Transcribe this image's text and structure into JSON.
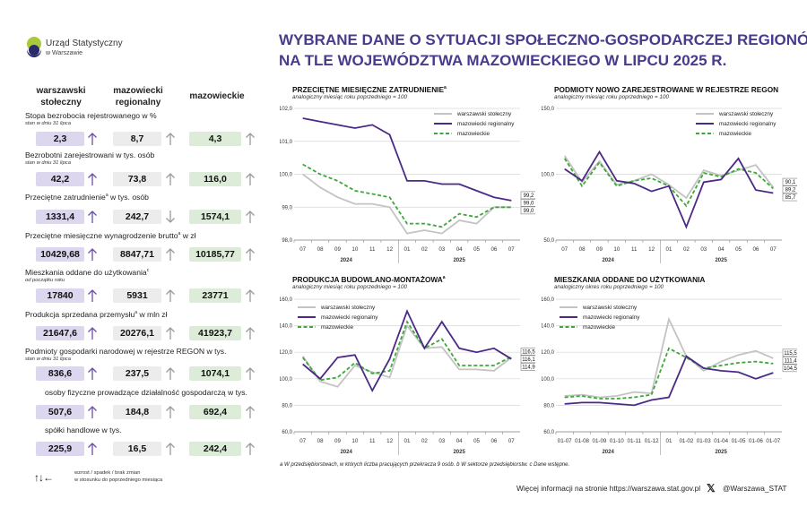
{
  "logo": {
    "line1": "Urząd Statystyczny",
    "line2": "w Warszawie"
  },
  "title": {
    "line1": "WYBRANE DANE O SYTUACJI SPOŁECZNO-GOSPODARCZEJ REGIONÓW",
    "line2": "NA TLE WOJEWÓDZTWA MAZOWIECKIEGO W LIPCU 2025 R."
  },
  "columns": {
    "c1a": "warszawski",
    "c1b": "stołeczny",
    "c2a": "mazowiecki",
    "c2b": "regionalny",
    "c3": "mazowieckie"
  },
  "indicators": [
    {
      "label": "Stopa bezrobocia rejestrowanego w %",
      "sub": "stan w dniu 31 lipca",
      "v1": "2,3",
      "v2": "8,7",
      "v3": "4,3",
      "a1": "up",
      "a2": "up",
      "a3": "up"
    },
    {
      "label": "Bezrobotni zarejestrowani w tys. osób",
      "sub": "stan w dniu 31 lipca",
      "v1": "42,2",
      "v2": "73,8",
      "v3": "116,0",
      "a1": "up",
      "a2": "up",
      "a3": "up"
    },
    {
      "label": "Przeciętne zatrudnienie",
      "sup": "a",
      "label2": " w tys. osób",
      "sub": "",
      "v1": "1331,4",
      "v2": "242,7",
      "v3": "1574,1",
      "a1": "up",
      "a2": "down",
      "a3": "up"
    },
    {
      "label": "Przeciętne miesięczne wynagrodzenie brutto",
      "sup": "a",
      "label2": " w zł",
      "sub": "",
      "v1": "10429,68",
      "v2": "8847,71",
      "v3": "10185,77",
      "a1": "up",
      "a2": "up",
      "a3": "up"
    },
    {
      "label": "Mieszkania oddane do użytkowania",
      "sup": "c",
      "label2": "",
      "sub": "od początku roku",
      "v1": "17840",
      "v2": "5931",
      "v3": "23771",
      "a1": "up",
      "a2": "up",
      "a3": "up"
    },
    {
      "label": "Produkcja sprzedana przemysłu",
      "sup": "a",
      "label2": " w mln zł",
      "sub": "",
      "v1": "21647,6",
      "v2": "20276,1",
      "v3": "41923,7",
      "a1": "up",
      "a2": "up",
      "a3": "up"
    },
    {
      "label": "Podmioty gospodarki narodowej w rejestrze REGON w tys.",
      "sub": "stan w dniu 31 lipca",
      "v1": "836,6",
      "v2": "237,5",
      "v3": "1074,1",
      "a1": "up",
      "a2": "up",
      "a3": "up"
    },
    {
      "label": "osoby fizyczne prowadzące działalność gospodarczą w tys.",
      "sub": "",
      "v1": "507,6",
      "v2": "184,8",
      "v3": "692,4",
      "a1": "up",
      "a2": "up",
      "a3": "up"
    },
    {
      "label": "spółki handlowe w tys.",
      "sub": "",
      "v1": "225,9",
      "v2": "16,5",
      "v3": "242,4",
      "a1": "up",
      "a2": "up",
      "a3": "up"
    }
  ],
  "arrow_legend": {
    "arrows": "↑↓←",
    "line1": "wzrost / spadek / brak zmian",
    "line2": "w stosunku do poprzedniego miesiąca"
  },
  "colors": {
    "ws": "#c3c3c3",
    "mr": "#4b2a86",
    "maz": "#3aa935",
    "title": "#4a3a8c"
  },
  "chart_data": [
    {
      "type": "line",
      "title": "PRZECIĘTNE MIESIĘCZNE ZATRUDNIENIE",
      "title_sup": "a",
      "subtitle": "analogiczny miesiąc roku poprzedniego = 100",
      "x": [
        "07",
        "08",
        "09",
        "10",
        "11",
        "12",
        "01",
        "02",
        "03",
        "04",
        "05",
        "06",
        "07"
      ],
      "years": [
        "2024",
        "2025"
      ],
      "ylim": [
        98.0,
        102.0
      ],
      "yticks": [
        "98,0",
        "99,0",
        "100,0",
        "101,0",
        "102,0"
      ],
      "series": [
        {
          "name": "warszawski stołeczny",
          "values": [
            100.0,
            99.6,
            99.3,
            99.1,
            99.1,
            99.0,
            98.2,
            98.3,
            98.2,
            98.6,
            98.5,
            99.0,
            99.0
          ]
        },
        {
          "name": "mazowiecki regionalny",
          "values": [
            101.7,
            101.6,
            101.5,
            101.4,
            101.5,
            101.2,
            99.8,
            99.8,
            99.7,
            99.7,
            99.5,
            99.3,
            99.2
          ]
        },
        {
          "name": "mazowieckie",
          "values": [
            100.3,
            100.0,
            99.8,
            99.5,
            99.4,
            99.3,
            98.5,
            98.5,
            98.4,
            98.8,
            98.7,
            99.0,
            99.0
          ]
        }
      ],
      "end_labels": [
        "99,2",
        "99,0",
        "99,0"
      ]
    },
    {
      "type": "line",
      "title": "PODMIOTY NOWO ZAREJESTROWANE W REJESTRZE REGON",
      "subtitle": "analogiczny miesiąc roku poprzedniego = 100",
      "x": [
        "07",
        "08",
        "09",
        "10",
        "11",
        "12",
        "01",
        "02",
        "03",
        "04",
        "05",
        "06",
        "07"
      ],
      "years": [
        "2024",
        "2025"
      ],
      "ylim": [
        50.0,
        150.0
      ],
      "yticks": [
        "50,0",
        "100,0",
        "150,0"
      ],
      "series": [
        {
          "name": "warszawski stołeczny",
          "values": [
            114,
            94,
            110,
            92,
            95,
            100,
            92,
            82,
            103,
            99,
            103,
            107,
            90.1
          ]
        },
        {
          "name": "mazowiecki regionalny",
          "values": [
            104,
            95,
            117,
            95,
            93,
            87,
            91,
            60,
            94,
            96,
            112,
            88,
            85.7
          ]
        },
        {
          "name": "mazowieckie",
          "values": [
            112,
            91,
            109,
            91,
            95,
            97,
            91,
            76,
            101,
            98,
            104,
            101,
            89.2
          ]
        }
      ],
      "end_labels": [
        "90,1",
        "89,2",
        "85,7"
      ]
    },
    {
      "type": "line",
      "title": "PRODUKCJA BUDOWLANO-MONTAŻOWA",
      "title_sup": "a",
      "subtitle": "analogiczny miesiąc roku poprzedniego = 100",
      "x": [
        "07",
        "08",
        "09",
        "10",
        "11",
        "12",
        "01",
        "02",
        "03",
        "04",
        "05",
        "06",
        "07"
      ],
      "years": [
        "2024",
        "2025"
      ],
      "ylim": [
        60.0,
        160.0
      ],
      "yticks": [
        "60,0",
        "80,0",
        "100,0",
        "120,0",
        "140,0",
        "160,0"
      ],
      "series": [
        {
          "name": "warszawski stołeczny",
          "values": [
            117,
            98,
            94,
            110,
            105,
            101,
            140,
            123,
            124,
            107,
            107,
            106,
            116.1
          ]
        },
        {
          "name": "mazowiecki regionalny",
          "values": [
            111,
            100,
            116,
            118,
            91,
            115,
            151,
            123,
            143,
            123,
            120,
            123,
            114.9
          ]
        },
        {
          "name": "mazowieckie",
          "values": [
            116,
            99,
            101,
            112,
            104,
            106,
            143,
            123,
            130,
            110,
            110,
            110,
            116.5
          ]
        }
      ],
      "end_labels": [
        "116,5",
        "116,1",
        "114,9"
      ]
    },
    {
      "type": "line",
      "title": "MIESZKANIA ODDANE DO UŻYTKOWANIA",
      "subtitle": "analogiczny okres roku poprzedniego = 100",
      "x": [
        "01-07",
        "01-08",
        "01-09",
        "01-10",
        "01-11",
        "01-12",
        "01",
        "01-02",
        "01-03",
        "01-04",
        "01-05",
        "01-06",
        "01-07"
      ],
      "years": [
        "2024",
        "2025"
      ],
      "ylim": [
        60.0,
        160.0
      ],
      "yticks": [
        "60,0",
        "80,0",
        "100,0",
        "120,0",
        "140,0",
        "160,0"
      ],
      "series": [
        {
          "name": "warszawski stołeczny",
          "values": [
            87,
            88,
            86,
            87,
            90,
            89,
            145,
            117,
            106,
            113,
            118,
            121,
            115.5
          ]
        },
        {
          "name": "mazowiecki regionalny",
          "values": [
            81,
            82,
            82,
            81,
            80,
            84,
            86,
            117,
            108,
            106,
            105,
            100,
            104.5
          ]
        },
        {
          "name": "mazowieckie",
          "values": [
            86,
            87,
            85,
            85,
            86,
            88,
            123,
            116,
            108,
            110,
            112,
            113,
            111.4
          ]
        }
      ],
      "end_labels": [
        "115,5",
        "111,4",
        "104,5"
      ]
    }
  ],
  "footnote": "a W przedsiębiorstwach, w których liczba pracujących przekracza 9 osób.   b W sektorze przedsiębiorstw.   c Dane wstępne.",
  "more_info": "Więcej informacji na stronie https://warszawa.stat.gov.pl",
  "social": {
    "icon": "x-logo-icon",
    "handle": "@Warszawa_STAT"
  }
}
